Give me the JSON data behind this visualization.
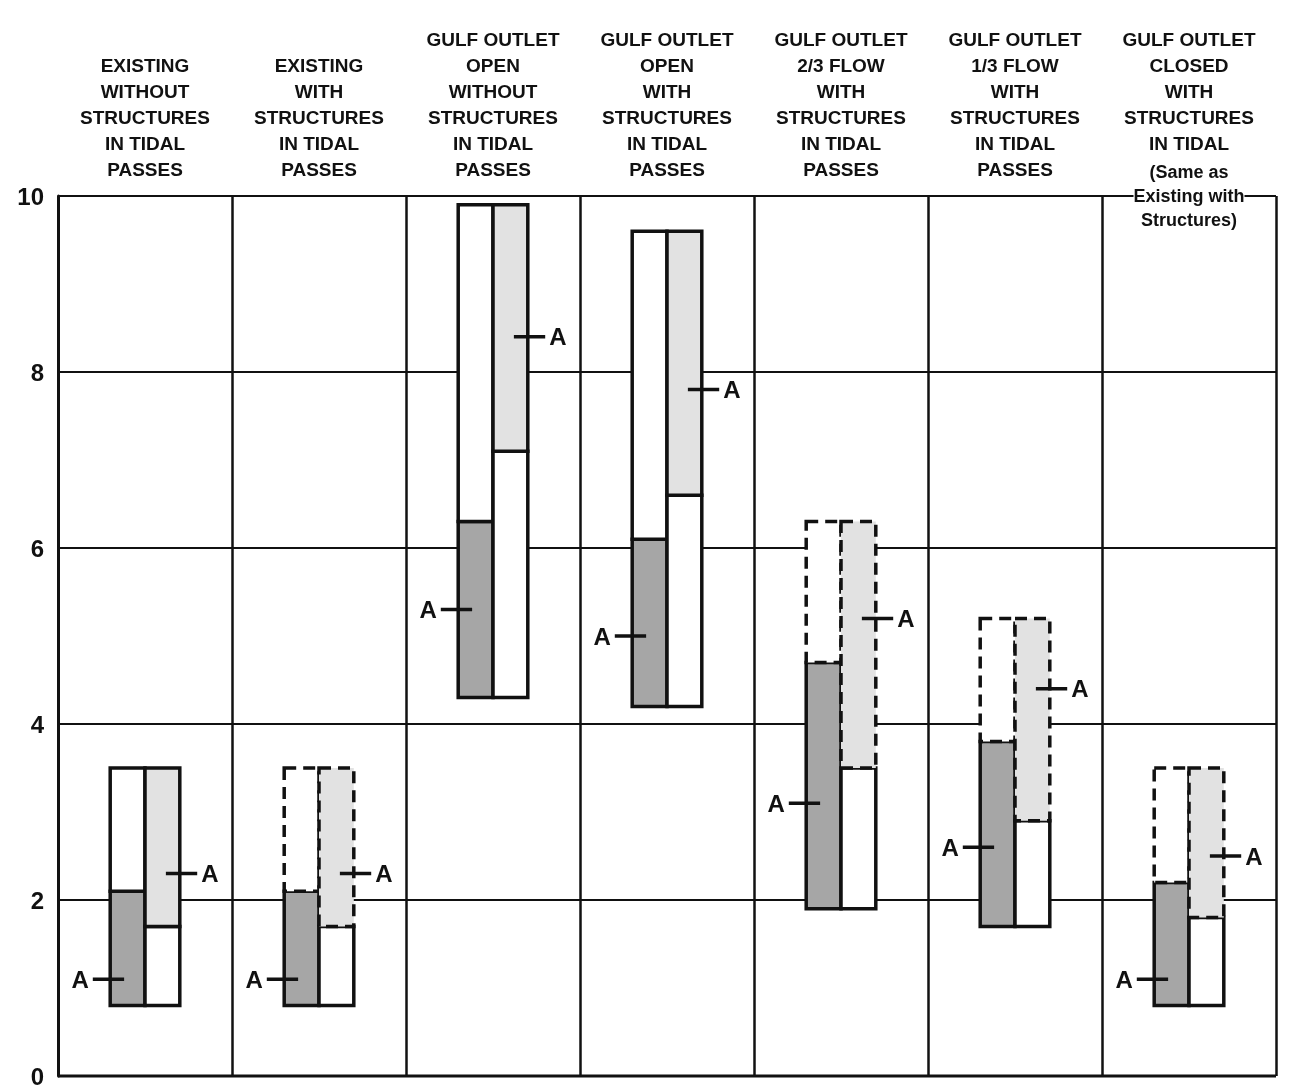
{
  "chart_data": {
    "type": "bar",
    "categories": [
      "EXISTING\nWITHOUT\nSTRUCTURES\nIN TIDAL\nPASSES",
      "EXISTING\nWITH\nSTRUCTURES\nIN TIDAL\nPASSES",
      "GULF OUTLET\nOPEN\nWITHOUT\nSTRUCTURES\nIN TIDAL\nPASSES",
      "GULF OUTLET\nOPEN\nWITH\nSTRUCTURES\nIN TIDAL\nPASSES",
      "GULF OUTLET\n2/3 FLOW\nWITH\nSTRUCTURES\nIN TIDAL\nPASSES",
      "GULF OUTLET\n1/3 FLOW\nWITH\nSTRUCTURES\nIN TIDAL\nPASSES",
      "GULF OUTLET\nCLOSED\nWITH\nSTRUCTURES\nIN TIDAL\nPASSES"
    ],
    "series": [
      {
        "color": "#a6a6a6",
        "base": [
          0.8,
          0.8,
          4.3,
          4.2,
          1.9,
          1.7,
          0.8
        ],
        "values": [
          1.3,
          1.3,
          2.0,
          1.9,
          2.8,
          2.1,
          1.4
        ]
      },
      {
        "color": "#ffffff",
        "base": [
          2.1,
          null,
          6.3,
          6.1,
          null,
          null,
          null
        ],
        "values": [
          1.4,
          null,
          3.6,
          3.5,
          null,
          null,
          null
        ]
      },
      {
        "color": "#ffffff",
        "line_style": "dashed",
        "base": [
          null,
          2.1,
          null,
          null,
          4.7,
          3.8,
          2.2
        ],
        "values": [
          null,
          1.4,
          null,
          null,
          1.6,
          1.4,
          1.3
        ]
      },
      {
        "color": "#ffffff",
        "base": [
          0.8,
          0.8,
          4.3,
          4.2,
          1.9,
          1.7,
          0.8
        ],
        "values": [
          0.9,
          0.9,
          2.8,
          2.4,
          1.6,
          1.2,
          1.0
        ]
      },
      {
        "color": "#e2e2e2",
        "base": [
          1.7,
          null,
          7.1,
          6.6,
          null,
          null,
          null
        ],
        "values": [
          1.8,
          null,
          2.8,
          3.0,
          null,
          null,
          null
        ]
      },
      {
        "color": "#e2e2e2",
        "line_style": "dashed",
        "base": [
          null,
          1.7,
          null,
          null,
          3.5,
          2.9,
          1.8
        ],
        "values": [
          null,
          1.8,
          null,
          null,
          2.8,
          2.3,
          1.7
        ]
      }
    ],
    "ylim": [
      0,
      10
    ],
    "yticks": [
      0,
      2,
      4,
      6,
      8,
      10
    ],
    "grid": true,
    "annotations": [
      {
        "text": "A",
        "x": "EXISTING\nWITHOUT\nSTRUCTURES\nIN TIDAL\nPASSES",
        "y": 1.1
      },
      {
        "text": "A",
        "x": "EXISTING\nWITHOUT\nSTRUCTURES\nIN TIDAL\nPASSES",
        "y": 2.3
      },
      {
        "text": "A",
        "x": "EXISTING\nWITH\nSTRUCTURES\nIN TIDAL\nPASSES",
        "y": 1.1
      },
      {
        "text": "A",
        "x": "EXISTING\nWITH\nSTRUCTURES\nIN TIDAL\nPASSES",
        "y": 2.3
      },
      {
        "text": "A",
        "x": "GULF OUTLET\nOPEN\nWITHOUT\nSTRUCTURES\nIN TIDAL\nPASSES",
        "y": 5.3
      },
      {
        "text": "A",
        "x": "GULF OUTLET\nOPEN\nWITHOUT\nSTRUCTURES\nIN TIDAL\nPASSES",
        "y": 8.4
      },
      {
        "text": "A",
        "x": "GULF OUTLET\nOPEN\nWITH\nSTRUCTURES\nIN TIDAL\nPASSES",
        "y": 5.0
      },
      {
        "text": "A",
        "x": "GULF OUTLET\nOPEN\nWITH\nSTRUCTURES\nIN TIDAL\nPASSES",
        "y": 7.8
      },
      {
        "text": "A",
        "x": "GULF OUTLET\n2/3 FLOW\nWITH\nSTRUCTURES\nIN TIDAL\nPASSES",
        "y": 3.1
      },
      {
        "text": "A",
        "x": "GULF OUTLET\n2/3 FLOW\nWITH\nSTRUCTURES\nIN TIDAL\nPASSES",
        "y": 5.2
      },
      {
        "text": "A",
        "x": "GULF OUTLET\n1/3 FLOW\nWITH\nSTRUCTURES\nIN TIDAL\nPASSES",
        "y": 2.6
      },
      {
        "text": "A",
        "x": "GULF OUTLET\n1/3 FLOW\nWITH\nSTRUCTURES\nIN TIDAL\nPASSES",
        "y": 4.4
      },
      {
        "text": "A",
        "x": "GULF OUTLET\nCLOSED\nWITH\nSTRUCTURES\nIN TIDAL\nPASSES",
        "y": 1.1
      },
      {
        "text": "A",
        "x": "GULF OUTLET\nCLOSED\nWITH\nSTRUCTURES\nIN TIDAL\nPASSES",
        "y": 2.5
      },
      "(Same as\nExisting with\nStructures)"
    ]
  }
}
